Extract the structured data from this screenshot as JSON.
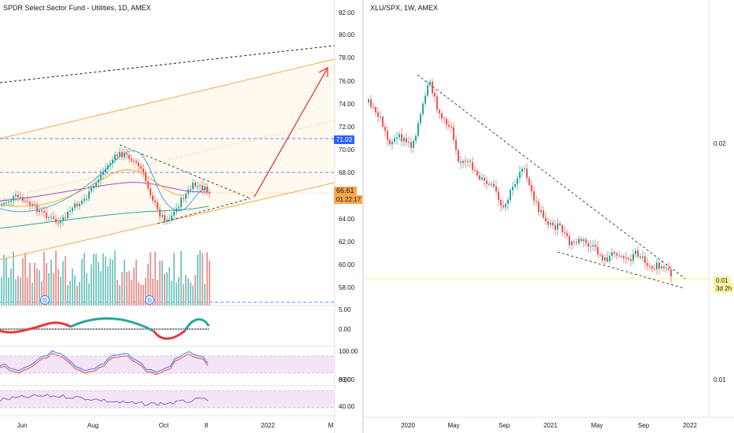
{
  "left_chart": {
    "title": "SPDR Select Sector Fund - Utilities, 1D, AMEX",
    "price_axis": [
      "82.00",
      "80.00",
      "78.00",
      "76.00",
      "74.00",
      "72.00",
      "70.00",
      "68.00",
      "64.00",
      "62.00",
      "60.00",
      "58.00"
    ],
    "highlight_price": "71.03",
    "last_price": "66.61",
    "countdown": "01:22:17",
    "osc_axis": [
      "5.00",
      "0.00"
    ],
    "stoch_axis": [
      "100.00",
      "0.00"
    ],
    "rsi_axis": [
      "80.00",
      "40.00"
    ],
    "time_axis": [
      "Jun",
      "Aug",
      "Oct",
      "8",
      "2022",
      "M"
    ],
    "dividend_marker": "D"
  },
  "right_chart": {
    "title": "XLU/SPX, 1W, AMEX",
    "price_axis": [
      "0.02",
      "0.01"
    ],
    "last_price": "0.01",
    "countdown": "3d 2h",
    "time_axis": [
      "2020",
      "May",
      "Sep",
      "2021",
      "May",
      "Sep",
      "2022"
    ]
  },
  "colors": {
    "up": "#26a69a",
    "down": "#ef5350",
    "orange": "#f7a84b",
    "blue_dash": "#2962ff",
    "price_tag": "#2962ff",
    "purple_band": "#f3e5f5",
    "yellow_tag": "#fff59d"
  }
}
